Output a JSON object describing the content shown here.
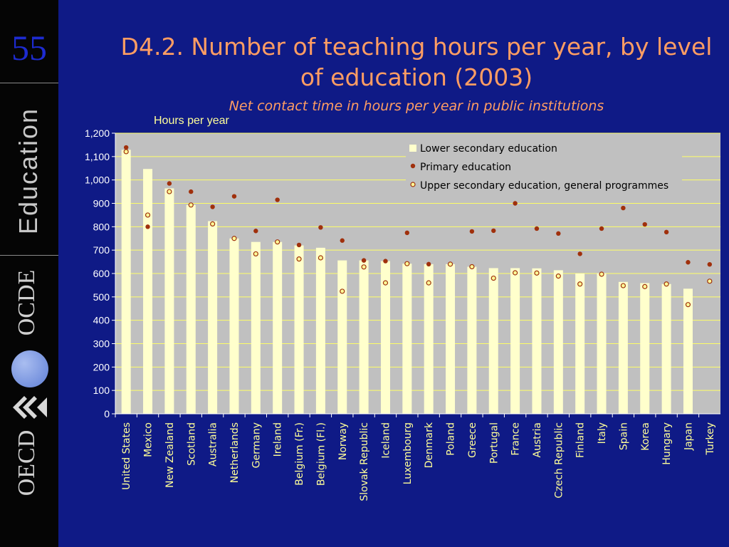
{
  "slide": {
    "number": "55"
  },
  "brand": {
    "education": "Education",
    "ocde": "OCDE",
    "oecd": "OECD"
  },
  "colors": {
    "background": "#0f1a86",
    "plot_bg": "#c0c0c0",
    "bar": "#ffffcc",
    "gridline": "#ffff66",
    "primary_marker": "#a0300c",
    "upper_marker_fill": "#ffff99",
    "upper_marker_stroke": "#a0300c",
    "title": "#ff9d63",
    "category_text": "#ffff99"
  },
  "chart_data": {
    "type": "bar",
    "title": "D4.2. Number of teaching hours per year, by level of education (2003)",
    "subtitle": "Net contact time in hours per year in public institutions",
    "ylabel": "Hours per year",
    "xlabel": "",
    "ylim": [
      0,
      1200
    ],
    "yticks": [
      "0",
      "100",
      "200",
      "300",
      "400",
      "500",
      "600",
      "700",
      "800",
      "900",
      "1,000",
      "1,100",
      "1,200"
    ],
    "grid": true,
    "legend_position": "top-right",
    "categories": [
      "United States",
      "Mexico",
      "New Zealand",
      "Scotland",
      "Australia",
      "Netherlands",
      "Germany",
      "Ireland",
      "Belgium (Fr.)",
      "Belgium (Fl.)",
      "Norway",
      "Slovak Republic",
      "Iceland",
      "Luxembourg",
      "Denmark",
      "Poland",
      "Greece",
      "Portugal",
      "France",
      "Austria",
      "Czech Republic",
      "Finland",
      "Italy",
      "Spain",
      "Korea",
      "Hungary",
      "Japan",
      "Turkey"
    ],
    "series": [
      {
        "name": "Lower secondary education",
        "kind": "bar",
        "values": [
          1129,
          1047,
          964,
          893,
          824,
          750,
          735,
          735,
          720,
          710,
          656,
          656,
          653,
          642,
          640,
          640,
          629,
          623,
          623,
          622,
          614,
          600,
          601,
          564,
          559,
          555,
          535,
          null
        ]
      },
      {
        "name": "Primary education",
        "kind": "marker-filled",
        "values": [
          1139,
          800,
          985,
          950,
          885,
          930,
          782,
          915,
          722,
          797,
          741,
          656,
          653,
          774,
          640,
          640,
          780,
          783,
          900,
          792,
          771,
          684,
          792,
          880,
          810,
          777,
          648,
          639
        ]
      },
      {
        "name": "Upper secondary education, general programmes",
        "kind": "marker-hollow",
        "values": [
          1121,
          850,
          950,
          893,
          812,
          750,
          684,
          735,
          662,
          667,
          524,
          628,
          560,
          642,
          560,
          640,
          629,
          580,
          603,
          602,
          589,
          555,
          597,
          548,
          544,
          555,
          467,
          567
        ]
      }
    ]
  }
}
